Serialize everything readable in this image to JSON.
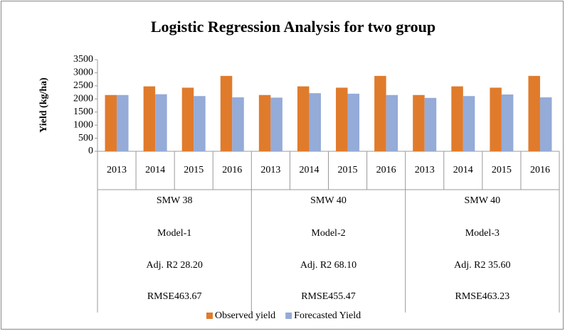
{
  "chart_data": {
    "type": "bar",
    "title": "Logistic Regression Analysis for two group",
    "y_label": "Yield (kg/ha)",
    "categories": [
      "2013",
      "2014",
      "2015",
      "2016",
      "2013",
      "2014",
      "2015",
      "2016",
      "2013",
      "2014",
      "2015",
      "2016"
    ],
    "groups": [
      {
        "lines": [
          "SMW 38",
          "Model-1",
          "Adj. R2 28.20",
          "RMSE463.67"
        ]
      },
      {
        "lines": [
          "SMW 40",
          "Model-2",
          "Adj. R2 68.10",
          "RMSE455.47"
        ]
      },
      {
        "lines": [
          "SMW 40",
          "Model-3",
          "Adj. R2 35.60",
          "RMSE463.23"
        ]
      }
    ],
    "series": [
      {
        "name": "Observed yield",
        "color": "#e07b2c",
        "values": [
          2150,
          2480,
          2430,
          2880,
          2150,
          2480,
          2430,
          2880,
          2150,
          2480,
          2430,
          2880
        ]
      },
      {
        "name": "Forecasted Yield",
        "color": "#95abd8",
        "values": [
          2150,
          2180,
          2110,
          2060,
          2050,
          2220,
          2200,
          2150,
          2040,
          2110,
          2170,
          2060
        ]
      }
    ],
    "ylim": [
      0,
      3500
    ],
    "yticks": [
      0,
      500,
      1000,
      1500,
      2000,
      2500,
      3000,
      3500
    ],
    "grid": false,
    "legend": "bottom"
  }
}
